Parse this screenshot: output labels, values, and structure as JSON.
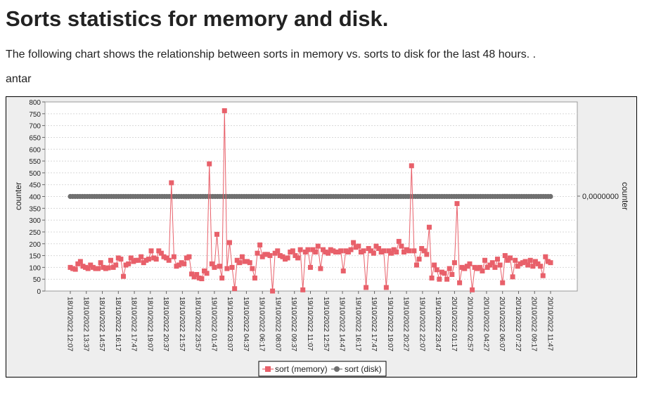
{
  "page": {
    "title": "Sorts statistics for memory and disk.",
    "description": "The following chart shows the relationship between sorts in memory vs. sorts to disk for the last 48 hours. .",
    "host": "antar"
  },
  "colors": {
    "memory": "#e8606a",
    "disk": "#707070",
    "plot_bg": "#ffffff",
    "panel_bg": "#eeeeee",
    "grid": "#d8d8d8"
  },
  "chart_data": {
    "type": "line",
    "ylabel": "counter",
    "y2label": "counter",
    "y2_tick": "0,0000000",
    "ylim": [
      0,
      800
    ],
    "yticks": [
      0,
      50,
      100,
      150,
      200,
      250,
      300,
      350,
      400,
      450,
      500,
      550,
      600,
      650,
      700,
      750,
      800
    ],
    "x_tick_labels": [
      "18/10/2022 12:07",
      "18/10/2022 13:37",
      "18/10/2022 14:57",
      "18/10/2022 16:17",
      "18/10/2022 17:47",
      "18/10/2022 19:07",
      "18/10/2022 20:37",
      "18/10/2022 21:57",
      "18/10/2022 23:57",
      "19/10/2022 01:47",
      "19/10/2022 03:07",
      "19/10/2022 04:37",
      "19/10/2022 06:17",
      "19/10/2022 08:07",
      "19/10/2022 09:37",
      "19/10/2022 11:07",
      "19/10/2022 12:57",
      "19/10/2022 14:47",
      "19/10/2022 16:17",
      "19/10/2022 17:47",
      "19/10/2022 19:07",
      "19/10/2022 20:27",
      "19/10/2022 22:07",
      "19/10/2022 23:47",
      "20/10/2022 01:17",
      "20/10/2022 02:57",
      "20/10/2022 04:27",
      "20/10/2022 06:07",
      "20/10/2022 07:27",
      "20/10/2022 09:17",
      "20/10/2022 11:47"
    ],
    "grid": true,
    "legend_position": "bottom",
    "series": [
      {
        "name": "sort (memory)",
        "marker": "square",
        "axis": "left",
        "values": [
          100,
          95,
          92,
          115,
          125,
          105,
          100,
          95,
          110,
          100,
          95,
          95,
          120,
          100,
          95,
          98,
          130,
          100,
          110,
          140,
          135,
          62,
          110,
          115,
          140,
          125,
          130,
          130,
          145,
          120,
          130,
          135,
          170,
          140,
          135,
          170,
          160,
          145,
          140,
          130,
          458,
          145,
          105,
          110,
          120,
          115,
          140,
          145,
          72,
          60,
          70,
          55,
          52,
          85,
          75,
          538,
          115,
          100,
          240,
          105,
          55,
          763,
          95,
          205,
          100,
          10,
          130,
          120,
          145,
          125,
          125,
          120,
          95,
          55,
          160,
          195,
          145,
          155,
          155,
          150,
          0,
          160,
          170,
          150,
          145,
          135,
          140,
          165,
          170,
          150,
          140,
          175,
          5,
          165,
          175,
          100,
          175,
          165,
          190,
          95,
          175,
          165,
          160,
          175,
          170,
          165,
          165,
          170,
          85,
          170,
          165,
          175,
          205,
          185,
          190,
          165,
          170,
          15,
          180,
          170,
          160,
          190,
          180,
          165,
          170,
          15,
          170,
          160,
          175,
          165,
          210,
          190,
          165,
          175,
          170,
          530,
          170,
          110,
          135,
          180,
          170,
          155,
          270,
          55,
          110,
          90,
          50,
          80,
          75,
          50,
          95,
          70,
          120,
          370,
          35,
          100,
          95,
          105,
          115,
          5,
          100,
          95,
          100,
          85,
          130,
          100,
          110,
          120,
          100,
          135,
          110,
          35,
          150,
          130,
          140,
          60,
          130,
          105,
          115,
          120,
          125,
          110,
          130,
          105,
          125,
          115,
          105,
          65,
          145,
          125,
          120
        ]
      },
      {
        "name": "sort (disk)",
        "marker": "circle",
        "axis": "right",
        "constant_level_on_left_scale": 400,
        "point_count": 200
      }
    ]
  }
}
